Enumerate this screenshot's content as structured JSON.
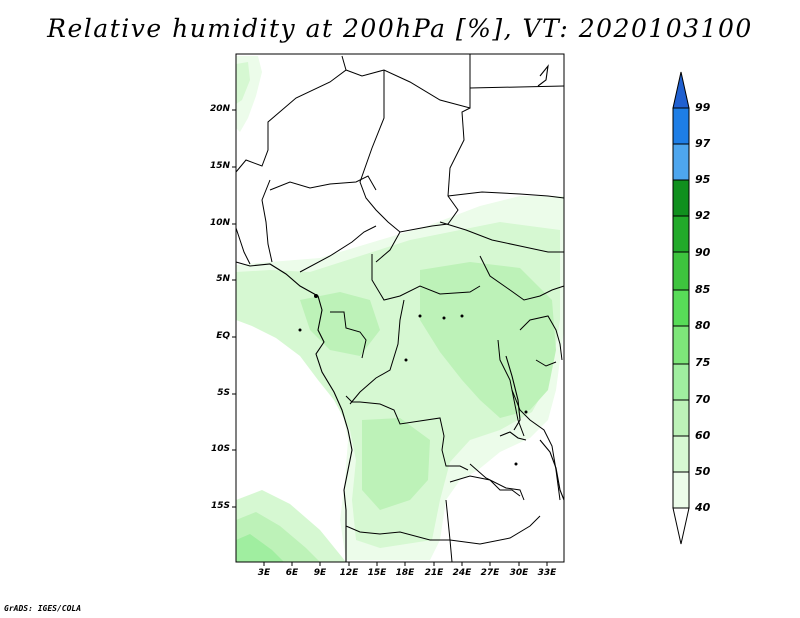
{
  "title": "Relative humidity at 200hPa [%], VT: 2020103100",
  "credit": "GrADS: IGES/COLA",
  "map": {
    "lat_labels": [
      "20N",
      "15N",
      "10N",
      "5N",
      "EQ",
      "5S",
      "10S",
      "15S"
    ],
    "lon_labels": [
      "3E",
      "6E",
      "9E",
      "12E",
      "15E",
      "18E",
      "21E",
      "24E",
      "27E",
      "30E",
      "33E"
    ]
  },
  "colorbar": {
    "levels": [
      "99",
      "97",
      "95",
      "92",
      "90",
      "85",
      "80",
      "75",
      "70",
      "60",
      "50",
      "40"
    ],
    "colors": [
      "#2060d0",
      "#1e7ee6",
      "#4ea6ee",
      "#10901e",
      "#22aa2a",
      "#3ec43e",
      "#58dc58",
      "#7ee67a",
      "#a0eea0",
      "#bdf2b8",
      "#d6f8d2",
      "#ecfcea",
      "#ffffff"
    ]
  }
}
